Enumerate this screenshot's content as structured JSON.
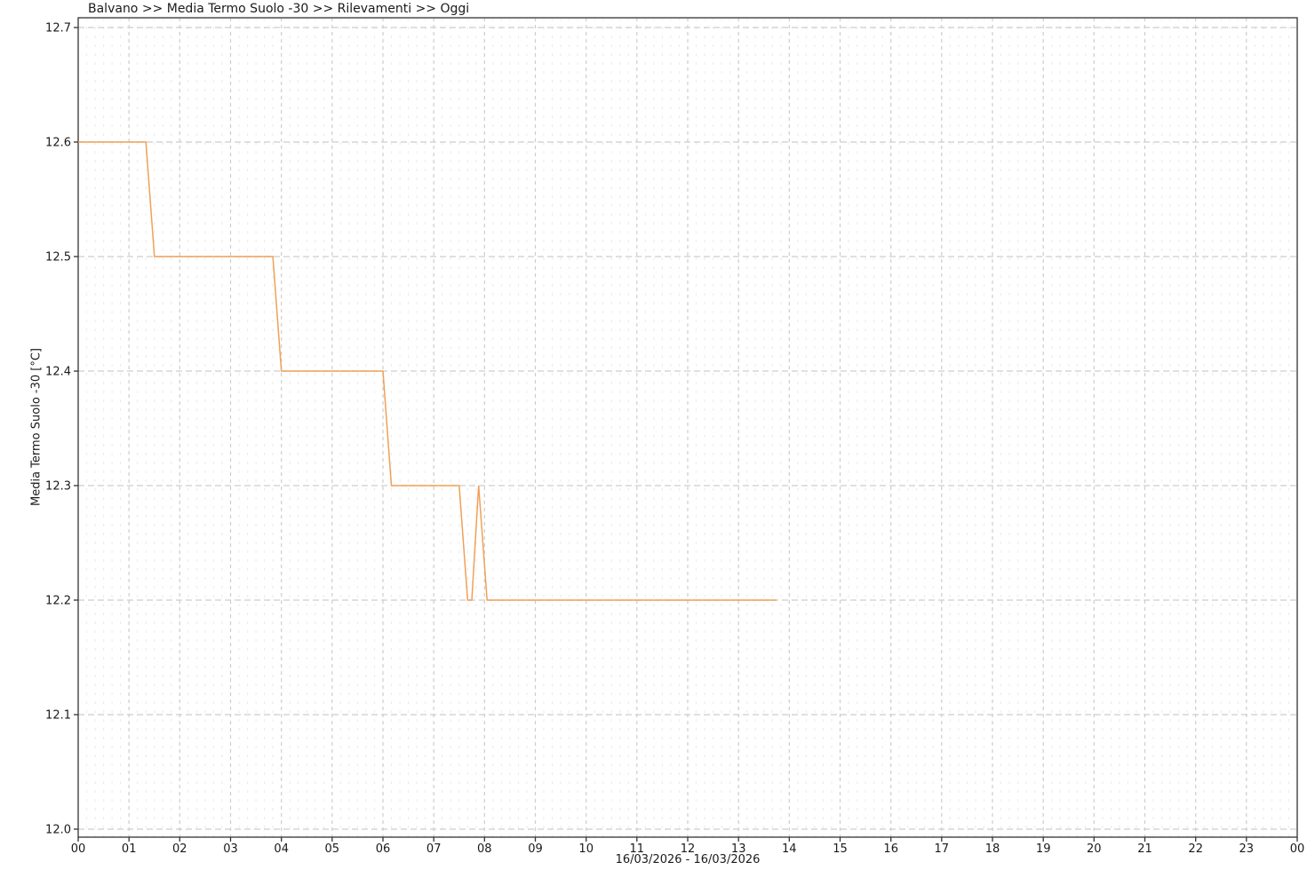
{
  "chart_data": {
    "type": "line",
    "title": "Balvano >> Media Termo Suolo -30 >> Rilevamenti >> Oggi",
    "ylabel": "Media Termo Suolo -30 [°C]",
    "xlabel": "16/03/2026 - 16/03/2026",
    "station": "Balvano",
    "measure": "Media Termo Suolo -30",
    "view": "Rilevamenti",
    "period": "Oggi",
    "ylim": [
      12.0,
      12.7
    ],
    "xlim_hours": [
      0,
      24
    ],
    "x_ticks": [
      "00",
      "01",
      "02",
      "03",
      "04",
      "05",
      "06",
      "07",
      "08",
      "09",
      "10",
      "11",
      "12",
      "13",
      "14",
      "15",
      "16",
      "17",
      "18",
      "19",
      "20",
      "21",
      "22",
      "23",
      "00"
    ],
    "y_ticks": [
      "12.0",
      "12.1",
      "12.2",
      "12.3",
      "12.4",
      "12.5",
      "12.6",
      "12.7"
    ],
    "grid": "on",
    "legend": "none",
    "line_color": "#F0A058",
    "grid_major_color": "#cdcdcd",
    "grid_minor_color": "#ededed",
    "axis_color": "#333333",
    "tick_label_color": "#1a1a1a",
    "series": [
      {
        "name": "Media Termo Suolo -30 [°C]",
        "points_hours_value": [
          [
            0.0,
            12.6
          ],
          [
            1.3333,
            12.6
          ],
          [
            1.5,
            12.5
          ],
          [
            3.8333,
            12.5
          ],
          [
            4.0,
            12.4
          ],
          [
            6.0,
            12.4
          ],
          [
            6.1667,
            12.3
          ],
          [
            7.5,
            12.3
          ],
          [
            7.6667,
            12.2
          ],
          [
            7.75,
            12.2
          ],
          [
            7.8833,
            12.3
          ],
          [
            8.05,
            12.2
          ],
          [
            13.75,
            12.2
          ]
        ]
      }
    ]
  }
}
